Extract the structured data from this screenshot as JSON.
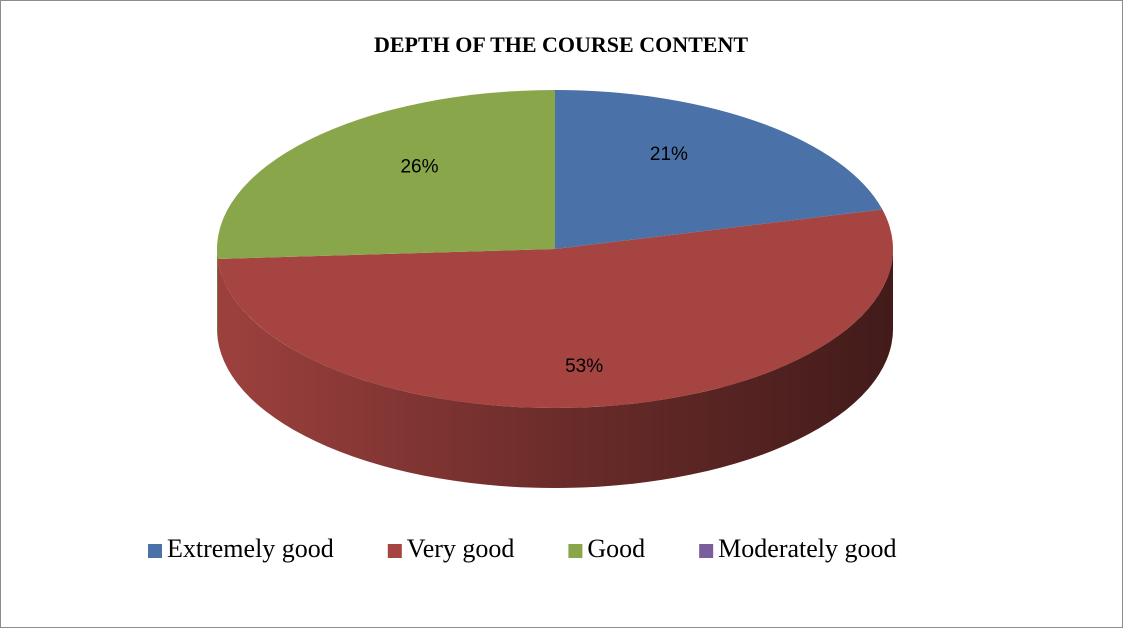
{
  "chart_data": {
    "type": "pie",
    "title": "DEPTH OF THE COURSE CONTENT",
    "categories": [
      "Extremely good",
      "Very good",
      "Good",
      "Moderately good"
    ],
    "values": [
      21,
      53,
      26,
      0
    ],
    "value_labels": [
      "21%",
      "53%",
      "26%",
      null
    ],
    "colors": [
      "#4a72a8",
      "#a54441",
      "#8aa64b",
      "#7b5d9c"
    ],
    "legend": "bottom"
  }
}
